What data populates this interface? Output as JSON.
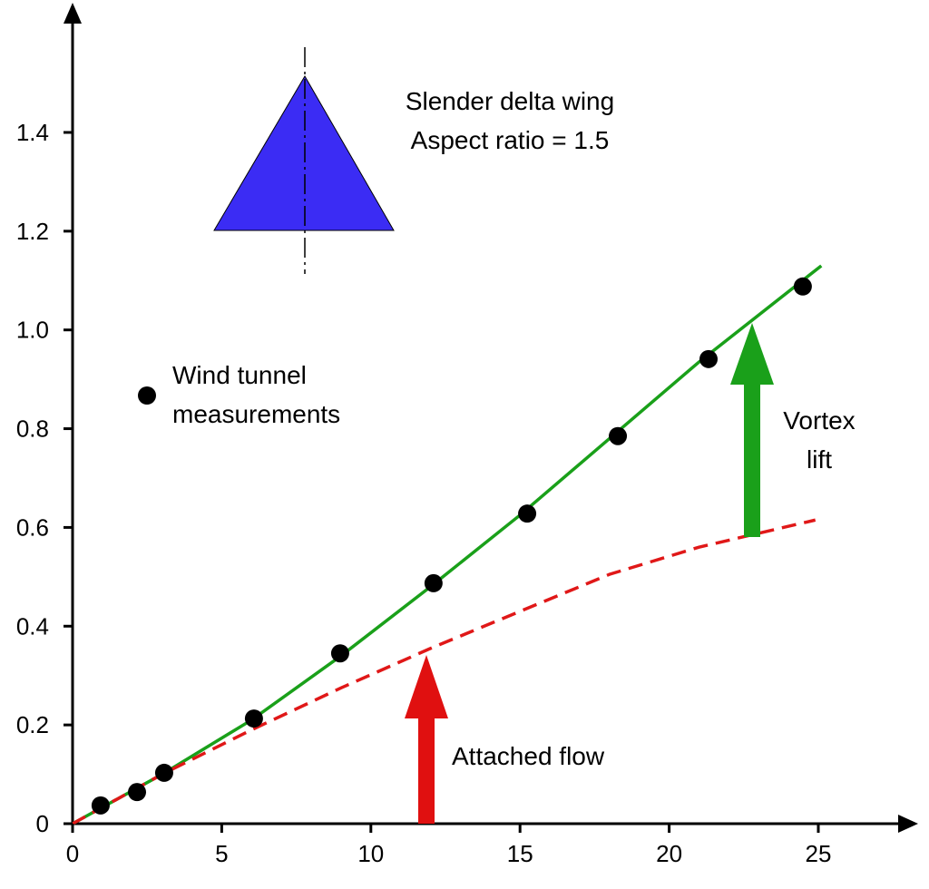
{
  "chart_data": {
    "type": "line",
    "xlim": [
      0,
      28
    ],
    "ylim": [
      0,
      1.65
    ],
    "xticks": [
      0,
      5,
      10,
      15,
      20,
      25
    ],
    "yticks": [
      0,
      0.2,
      0.4,
      0.6,
      0.8,
      {
        "value": 1,
        "label": "1.0"
      },
      1.2,
      1.4
    ],
    "series": [
      {
        "color": "#1aa01a",
        "style": "solid",
        "x": [
          0,
          3,
          6,
          9,
          12,
          15,
          18,
          21,
          25.1
        ],
        "values": [
          0,
          0.1,
          0.21,
          0.34,
          0.48,
          0.625,
          0.78,
          0.935,
          1.13
        ]
      },
      {
        "color": "#e01818",
        "style": "dashed",
        "x": [
          0,
          3,
          6,
          9,
          12,
          15,
          18,
          21,
          24.9
        ],
        "values": [
          0,
          0.1,
          0.19,
          0.275,
          0.355,
          0.43,
          0.505,
          0.56,
          0.615
        ]
      },
      {
        "name": "Wind tunnel measurements",
        "type": "scatter",
        "color": "#000000",
        "x": [
          0.94,
          2.16,
          3.07,
          6.08,
          8.97,
          12.1,
          15.24,
          18.28,
          21.32,
          24.48
        ],
        "values": [
          0.037,
          0.064,
          0.103,
          0.213,
          0.345,
          0.487,
          0.628,
          0.785,
          0.941,
          1.088
        ]
      }
    ],
    "annotations": [
      "Slender delta wing",
      "Aspect ratio = 1.5",
      "Vortex lift",
      "Attached flow"
    ]
  }
}
